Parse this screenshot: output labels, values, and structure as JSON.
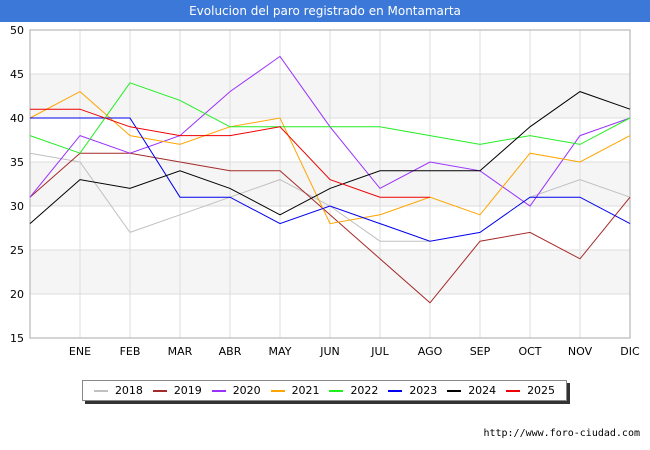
{
  "chart_data": {
    "type": "line",
    "title": "Evolucion del paro registrado en Montamarta",
    "categories": [
      "",
      "ENE",
      "FEB",
      "MAR",
      "ABR",
      "MAY",
      "JUN",
      "JUL",
      "AGO",
      "SEP",
      "OCT",
      "NOV",
      "DIC"
    ],
    "ylim": [
      15,
      50
    ],
    "yticks": [
      15,
      20,
      25,
      30,
      35,
      40,
      45,
      50
    ],
    "grid": true,
    "legend_placement": "bottom",
    "series": [
      {
        "name": "2018",
        "color": "#c0c0c0",
        "values": [
          36,
          35,
          27,
          29,
          31,
          33,
          30,
          26,
          26,
          null,
          31,
          33,
          31
        ]
      },
      {
        "name": "2019",
        "color": "#a52a2a",
        "values": [
          31,
          36,
          36,
          35,
          34,
          34,
          29,
          24,
          19,
          26,
          27,
          24,
          31
        ]
      },
      {
        "name": "2020",
        "color": "#9b30ff",
        "values": [
          31,
          38,
          36,
          38,
          43,
          47,
          39,
          32,
          35,
          34,
          30,
          38,
          40
        ]
      },
      {
        "name": "2021",
        "color": "#ffa500",
        "values": [
          40,
          43,
          38,
          37,
          39,
          40,
          28,
          29,
          31,
          29,
          36,
          35,
          38
        ]
      },
      {
        "name": "2022",
        "color": "#22ee22",
        "values": [
          38,
          36,
          44,
          42,
          39,
          39,
          39,
          39,
          38,
          37,
          38,
          37,
          40
        ]
      },
      {
        "name": "2023",
        "color": "#0000ee",
        "values": [
          40,
          40,
          40,
          31,
          31,
          28,
          30,
          28,
          26,
          27,
          31,
          31,
          28
        ]
      },
      {
        "name": "2024",
        "color": "#000000",
        "values": [
          28,
          33,
          32,
          34,
          32,
          29,
          32,
          34,
          34,
          34,
          39,
          43,
          41
        ]
      },
      {
        "name": "2025",
        "color": "#ee0000",
        "values": [
          41,
          41,
          39,
          38,
          38,
          39,
          33,
          31,
          31,
          null,
          null,
          null,
          null
        ]
      }
    ]
  },
  "footer": {
    "url": "http://www.foro-ciudad.com"
  }
}
